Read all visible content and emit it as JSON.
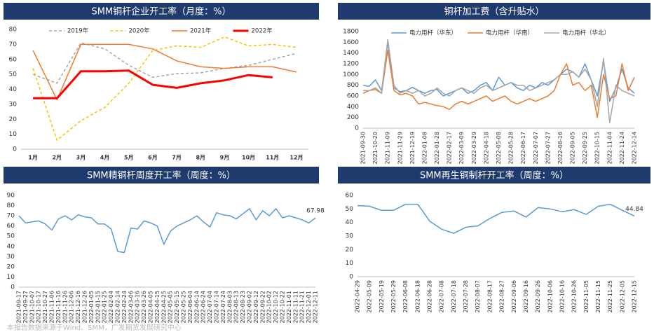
{
  "chart_data": [
    {
      "type": "line",
      "title": "SMM铜杆企业开工率（月度：%）",
      "categories": [
        "1月",
        "2月",
        "3月",
        "4月",
        "5月",
        "6月",
        "7月",
        "8月",
        "9月",
        "10月",
        "11月",
        "12月"
      ],
      "ylim": [
        0,
        80
      ],
      "yticks": [
        0,
        10,
        20,
        30,
        40,
        50,
        60,
        70,
        80
      ],
      "legend": true,
      "series": [
        {
          "name": "2019年",
          "color": "#a6a6a6",
          "style": "dashed",
          "width": 1.5,
          "values": [
            50,
            44,
            71,
            67,
            56,
            48,
            50.5,
            51,
            54,
            56,
            60,
            64
          ]
        },
        {
          "name": "2020年",
          "color": "#ffc000",
          "style": "dashed",
          "width": 1.5,
          "values": [
            54,
            6,
            19,
            28,
            44,
            66,
            69,
            68,
            75,
            69,
            70,
            68
          ]
        },
        {
          "name": "2021年",
          "color": "#ed7d31",
          "style": "solid",
          "width": 1.5,
          "values": [
            66,
            33,
            70,
            70,
            70,
            67,
            59,
            55,
            54,
            55,
            55,
            51.5
          ]
        },
        {
          "name": "2022年",
          "color": "#ff0000",
          "style": "solid",
          "width": 3,
          "values": [
            34,
            34,
            52,
            52,
            52.5,
            43,
            41,
            44,
            46,
            49.5,
            48,
            null
          ]
        }
      ]
    },
    {
      "type": "line",
      "title": "铜杆加工费（含升贴水）",
      "categories": [
        "2021-09-30",
        null,
        "2021-10-20",
        null,
        "2021-11-09",
        null,
        "2021-11-29",
        null,
        "2021-12-19",
        null,
        "2022-01-08",
        null,
        "2022-01-28",
        null,
        "2022-02-17",
        null,
        "2022-03-09",
        null,
        "2022-03-29",
        null,
        "2022-04-18",
        null,
        "2022-05-08",
        null,
        "2022-05-28",
        null,
        "2022-06-17",
        null,
        "2022-07-07",
        null,
        "2022-07-27",
        null,
        "2022-08-16",
        null,
        "2022-09-05",
        null,
        "2022-09-25",
        null,
        "2022-10-15",
        null,
        "2022-11-04",
        null,
        "2022-11-24",
        null,
        "2022-12-14"
      ],
      "ylim": [
        0,
        1800
      ],
      "yticks": [
        0,
        200,
        400,
        600,
        800,
        1000,
        1200,
        1400,
        1600,
        1800
      ],
      "legend": true,
      "series": [
        {
          "name": "电力用杆（华东）",
          "color": "#5b9bd5",
          "style": "solid",
          "width": 1.5,
          "values": [
            800,
            780,
            900,
            700,
            1600,
            750,
            680,
            700,
            760,
            700,
            650,
            700,
            720,
            600,
            650,
            700,
            750,
            650,
            700,
            800,
            850,
            700,
            950,
            800,
            850,
            750,
            700,
            800,
            750,
            850,
            800,
            900,
            1000,
            1100,
            1050,
            950,
            1200,
            900,
            600,
            1250,
            500,
            750,
            1100,
            750,
            650
          ]
        },
        {
          "name": "电力用杆（华南）",
          "color": "#ed7d31",
          "style": "solid",
          "width": 1.5,
          "values": [
            650,
            700,
            720,
            650,
            1450,
            700,
            620,
            650,
            600,
            450,
            480,
            450,
            420,
            400,
            350,
            450,
            500,
            450,
            500,
            550,
            600,
            500,
            550,
            600,
            500,
            450,
            500,
            550,
            500,
            550,
            600,
            700,
            1000,
            1200,
            800,
            850,
            700,
            800,
            200,
            1000,
            550,
            600,
            1200,
            700,
            950
          ]
        },
        {
          "name": "电力用杆（华北）",
          "color": "#a5a5a5",
          "style": "solid",
          "width": 1.5,
          "values": [
            700,
            700,
            750,
            650,
            1650,
            800,
            650,
            700,
            650,
            700,
            600,
            650,
            750,
            650,
            600,
            700,
            750,
            700,
            650,
            750,
            800,
            700,
            750,
            800,
            850,
            800,
            800,
            700,
            750,
            800,
            850,
            900,
            1000,
            1000,
            1050,
            950,
            1100,
            900,
            400,
            1300,
            100,
            800,
            700,
            650,
            600
          ]
        }
      ]
    },
    {
      "type": "line",
      "title": "SMM精铜杆周度开工率（周度：%）",
      "categories": [
        "2021-09-17",
        "2021-09-27",
        "2021-10-07",
        "2021-10-17",
        "2021-10-27",
        "2021-11-06",
        "2021-11-16",
        "2021-11-26",
        "2021-12-06",
        "2021-12-16",
        "2021-12-26",
        "2022-01-05",
        "2022-01-15",
        "2022-01-25",
        "2022-02-04",
        "2022-02-14",
        "2022-02-24",
        "2022-03-06",
        "2022-03-16",
        "2022-03-26",
        "2022-04-05",
        "2022-04-15",
        "2022-04-25",
        "2022-05-05",
        "2022-05-15",
        "2022-05-25",
        "2022-06-04",
        "2022-06-14",
        "2022-06-24",
        "2022-07-04",
        "2022-07-14",
        "2022-07-24",
        "2022-08-03",
        "2022-08-13",
        "2022-08-23",
        "2022-09-02",
        "2022-09-12",
        "2022-09-22",
        "2022-10-02",
        "2022-10-12",
        "2022-10-22",
        "2022-11-01",
        "2022-11-11",
        "2022-11-21",
        "2022-12-01",
        "2022-12-11"
      ],
      "ylim": [
        0,
        90
      ],
      "yticks": [
        0,
        10,
        20,
        30,
        40,
        50,
        60,
        70,
        80,
        90
      ],
      "legend": false,
      "label_last": true,
      "series": [
        {
          "name": "精铜杆开工率",
          "color": "#5b9bd5",
          "style": "solid",
          "width": 1.5,
          "values": [
            70,
            63,
            64,
            65,
            62,
            56,
            67,
            70,
            66,
            71,
            69,
            68,
            62,
            62,
            57,
            35,
            34,
            58,
            57,
            65,
            63,
            60,
            42,
            55,
            60,
            63,
            66,
            70,
            64,
            59,
            73,
            71,
            70,
            67,
            72,
            77,
            66,
            75,
            70,
            77,
            68,
            70,
            68,
            66,
            63,
            67.98
          ]
        }
      ]
    },
    {
      "type": "line",
      "title": "SMM再生铜制杆开工率（周度：%）",
      "categories": [
        "2022-04-29",
        "2022-05-09",
        "2022-05-19",
        "2022-05-29",
        "2022-06-08",
        "2022-06-18",
        "2022-06-28",
        "2022-07-08",
        "2022-07-18",
        "2022-07-28",
        "2022-08-07",
        "2022-08-17",
        "2022-08-27",
        "2022-09-06",
        "2022-09-16",
        "2022-09-26",
        "2022-10-06",
        "2022-10-16",
        "2022-10-26",
        "2022-11-05",
        "2022-11-15",
        "2022-11-25",
        "2022-12-05",
        "2022-12-15"
      ],
      "ylim": [
        0,
        60
      ],
      "yticks": [
        0,
        10,
        20,
        30,
        40,
        50,
        60
      ],
      "legend": false,
      "label_last": true,
      "series": [
        {
          "name": "再生铜制杆开工率",
          "color": "#5b9bd5",
          "style": "solid",
          "width": 1.5,
          "values": [
            52.5,
            52,
            49,
            49,
            53.5,
            53.5,
            41,
            35,
            32,
            36.5,
            37.5,
            43,
            47.5,
            48.5,
            44,
            51,
            50,
            48,
            49.5,
            46,
            52,
            53.5,
            49,
            44.84
          ]
        }
      ]
    }
  ],
  "source": "本报告数据来源于Wind、SMM，广发期货发展研究中心"
}
